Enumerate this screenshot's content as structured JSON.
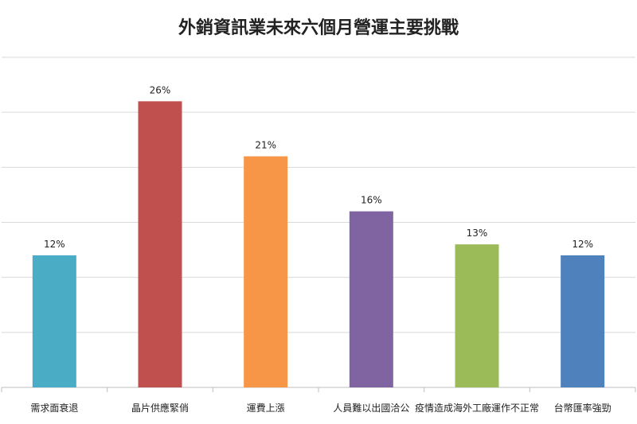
{
  "chart_data": {
    "type": "bar",
    "title": "外銷資訊業未來六個月營運主要挑戰",
    "categories": [
      "需求面衰退",
      "晶片供應緊俏",
      "運費上漲",
      "人員難以出國洽公",
      "疫情造成海外工廠運作不正常",
      "台幣匯率強勁"
    ],
    "values": [
      12,
      26,
      21,
      16,
      13,
      12
    ],
    "value_labels": [
      "12%",
      "26%",
      "21%",
      "16%",
      "13%",
      "12%"
    ],
    "colors": [
      "#4bacc6",
      "#c0504d",
      "#f79646",
      "#8064a2",
      "#9bbb59",
      "#4f81bd"
    ],
    "ylim": [
      0,
      30
    ],
    "grid": true,
    "xlabel": "",
    "ylabel": ""
  }
}
